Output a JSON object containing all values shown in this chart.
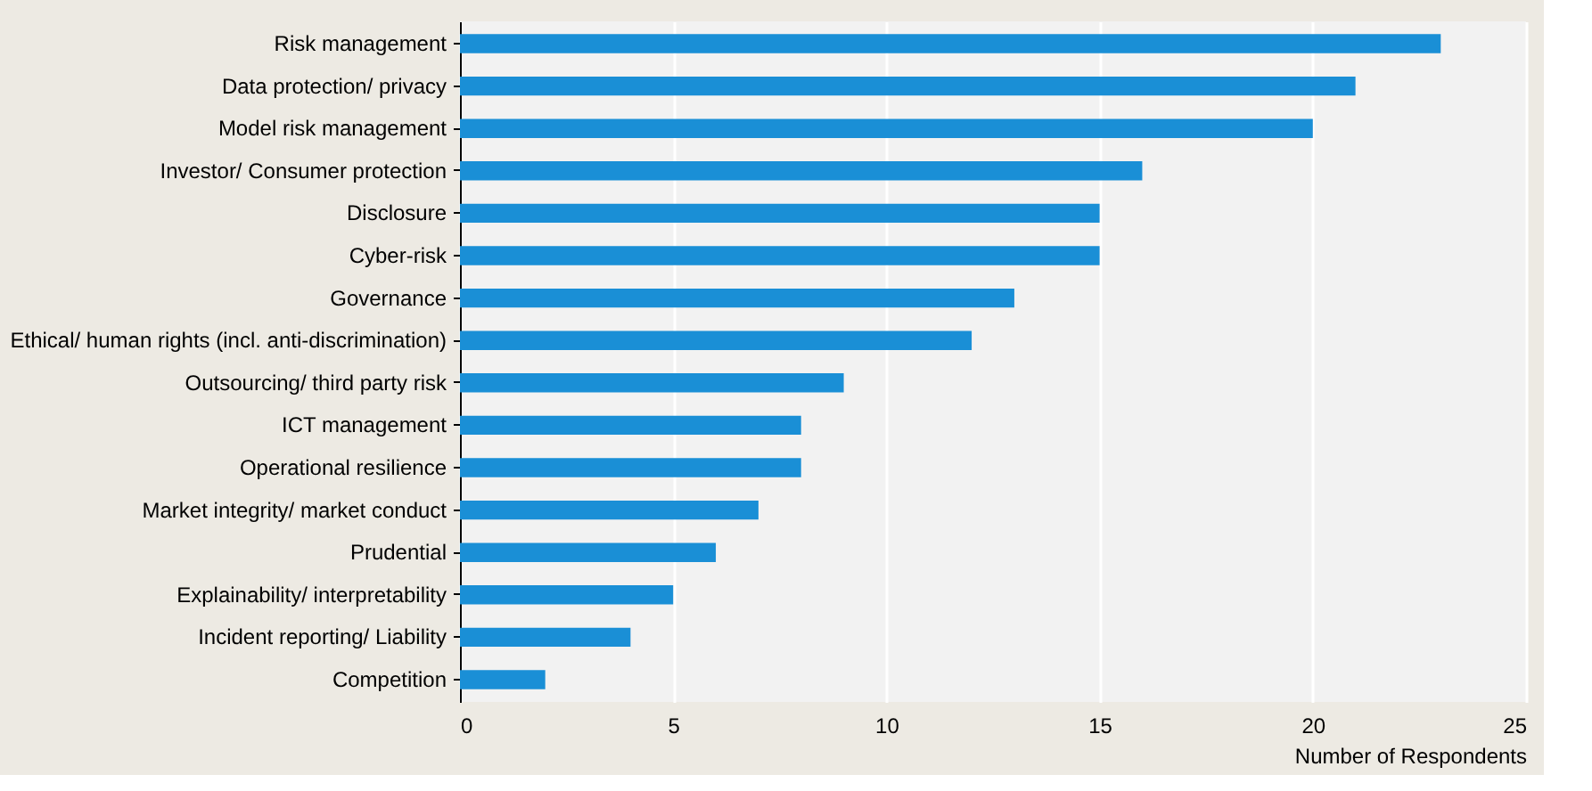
{
  "chart_data": {
    "type": "bar",
    "orientation": "horizontal",
    "categories": [
      "Risk management",
      "Data protection/ privacy",
      "Model risk management ",
      "Investor/ Consumer protection",
      "Disclosure",
      "Cyber-risk",
      "Governance",
      "Ethical/ human rights (incl. anti-discrimination)",
      "Outsourcing/ third party risk",
      "ICT management",
      "Operational resilience",
      "Market integrity/ market conduct",
      "Prudential",
      "Explainability/ interpretability",
      "Incident reporting/ Liability",
      "Competition"
    ],
    "values": [
      23,
      21,
      20,
      16,
      15,
      15,
      13,
      12,
      9,
      8,
      8,
      7,
      6,
      5,
      4,
      2
    ],
    "color": "#1a8fd6",
    "xlim": [
      0,
      25
    ],
    "xticks": [
      0,
      5,
      10,
      15,
      20,
      25
    ],
    "xlabel": "Number of Respondents",
    "grid": "x"
  }
}
